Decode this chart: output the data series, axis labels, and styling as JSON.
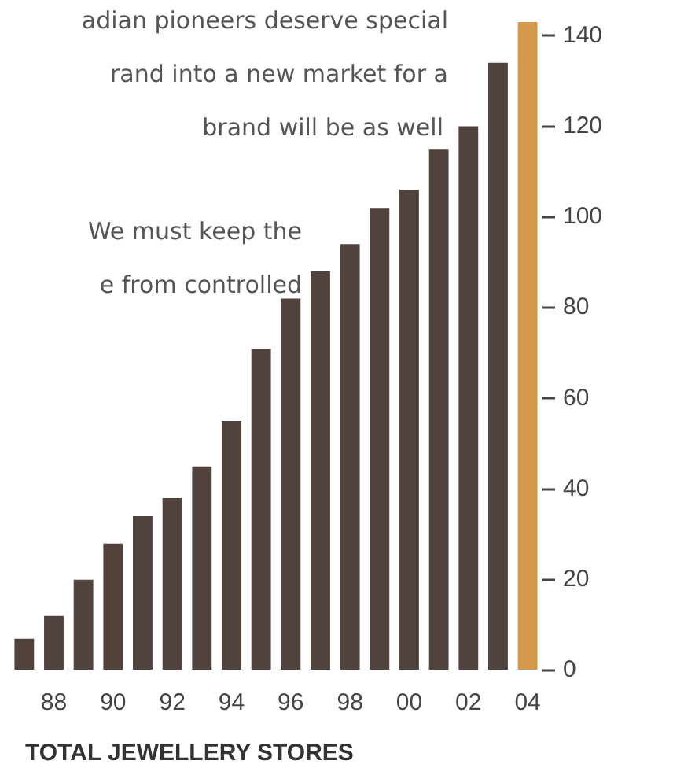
{
  "chart_data": {
    "type": "bar",
    "title": "TOTAL JEWELLERY STORES",
    "annotations": [
      "adian pioneers deserve special",
      "rand into a new market for a",
      "brand will be as well",
      "We must keep the",
      "e from controlled"
    ],
    "categories": [
      null,
      "88",
      null,
      "90",
      null,
      "92",
      null,
      "94",
      null,
      "96",
      null,
      "98",
      null,
      "00",
      null,
      "02",
      null,
      "04"
    ],
    "values": [
      7,
      12,
      20,
      28,
      34,
      38,
      45,
      55,
      71,
      82,
      88,
      94,
      102,
      106,
      115,
      120,
      134,
      143
    ],
    "colors": [
      "#52423d",
      "#52423d",
      "#52423d",
      "#52423d",
      "#52423d",
      "#52423d",
      "#52423d",
      "#52423d",
      "#52423d",
      "#52423d",
      "#52423d",
      "#52423d",
      "#52423d",
      "#52423d",
      "#52423d",
      "#52423d",
      "#52423d",
      "#d4994a"
    ],
    "ylim": [
      0,
      143
    ],
    "yticks": [
      0,
      20,
      40,
      60,
      80,
      100,
      120,
      140
    ],
    "grid": false,
    "legend": false
  }
}
